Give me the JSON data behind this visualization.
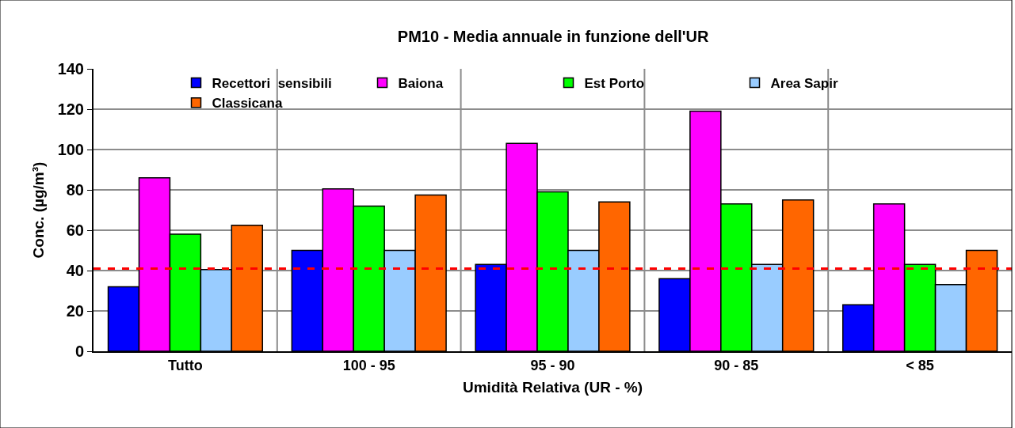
{
  "chart_data": {
    "type": "bar",
    "title": "PM10 - Media annuale in funzione dell'UR",
    "xlabel": "Umidità Relativa (UR - %)",
    "ylabel": "Conc. (µg/m³)",
    "categories": [
      "Tutto",
      "100 - 95",
      "95 - 90",
      "90 - 85",
      "< 85"
    ],
    "series": [
      {
        "name": "Recettori  sensibili",
        "color": "#0000ff",
        "values": [
          32,
          50,
          43,
          36,
          23
        ]
      },
      {
        "name": "Baiona",
        "color": "#ff00ff",
        "values": [
          86,
          80.5,
          103,
          119,
          73
        ]
      },
      {
        "name": "Est Porto",
        "color": "#00ff00",
        "values": [
          58,
          72,
          79,
          73,
          43
        ]
      },
      {
        "name": "Area Sapir",
        "color": "#99ccff",
        "values": [
          40.5,
          50,
          50,
          43,
          33
        ]
      },
      {
        "name": "Classicana",
        "color": "#ff6600",
        "values": [
          62.5,
          77.5,
          74,
          75,
          50
        ]
      }
    ],
    "ylim": [
      0,
      140
    ],
    "yticks": [
      0,
      20,
      40,
      60,
      80,
      100,
      120,
      140
    ],
    "ref_lines": [
      {
        "axis": "y",
        "value": 41,
        "color": "#ff0000",
        "line_style": "dashed"
      }
    ],
    "grid": true,
    "legend": "top"
  }
}
